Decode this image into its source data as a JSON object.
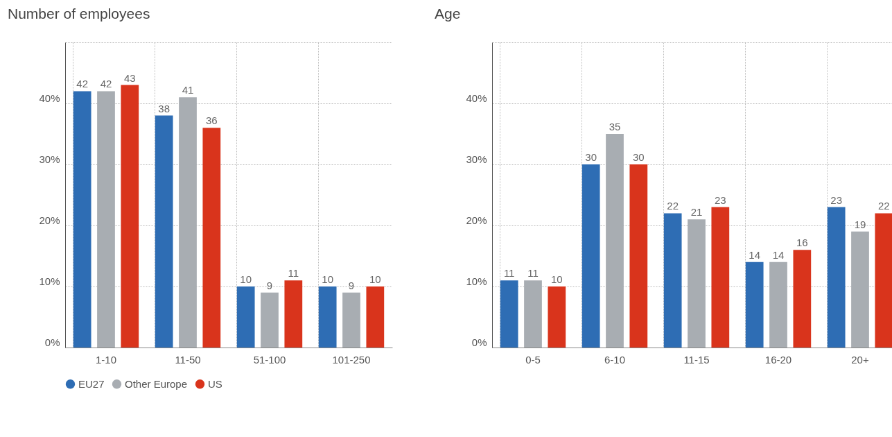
{
  "chart_data": [
    {
      "type": "bar",
      "title": "Number of employees",
      "categories": [
        "1-10",
        "11-50",
        "51-100",
        "101-250"
      ],
      "series": [
        {
          "name": "EU27",
          "color": "#2e6db4",
          "values": [
            42,
            38,
            10,
            10
          ]
        },
        {
          "name": "Other Europe",
          "color": "#a8adb2",
          "values": [
            42,
            41,
            9,
            9
          ]
        },
        {
          "name": "US",
          "color": "#d9341c",
          "values": [
            43,
            36,
            11,
            10
          ]
        }
      ],
      "ylim": [
        0,
        50
      ],
      "yticks": [
        {
          "value": 0,
          "label": "0%"
        },
        {
          "value": 10,
          "label": "10%"
        },
        {
          "value": 20,
          "label": "20%"
        },
        {
          "value": 30,
          "label": "30%"
        },
        {
          "value": 40,
          "label": "40%"
        },
        {
          "value": 50,
          "label": null
        }
      ],
      "grid": true,
      "data_labels": true,
      "legend": "bottom"
    },
    {
      "type": "bar",
      "title": "Age",
      "categories": [
        "0-5",
        "6-10",
        "11-15",
        "16-20",
        "20+"
      ],
      "series": [
        {
          "color": "#2e6db4",
          "values": [
            11,
            30,
            22,
            14,
            23
          ]
        },
        {
          "color": "#a8adb2",
          "values": [
            11,
            35,
            21,
            14,
            19
          ]
        },
        {
          "color": "#d9341c",
          "values": [
            10,
            30,
            23,
            16,
            22
          ]
        }
      ],
      "ylim": [
        0,
        50
      ],
      "yticks": [
        {
          "value": 0,
          "label": "0%"
        },
        {
          "value": 10,
          "label": "10%"
        },
        {
          "value": 20,
          "label": "20%"
        },
        {
          "value": 30,
          "label": "30%"
        },
        {
          "value": 40,
          "label": "40%"
        },
        {
          "value": 50,
          "label": null
        }
      ],
      "grid": true,
      "data_labels": true
    }
  ]
}
